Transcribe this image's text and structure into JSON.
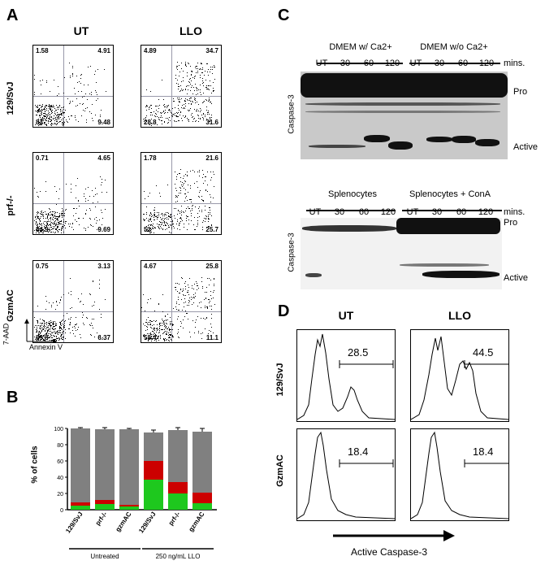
{
  "panel_a": {
    "label": "A",
    "col_headers": [
      "UT",
      "LLO"
    ],
    "row_headers": [
      "129/SvJ",
      "prf-/-",
      "GzmAC"
    ],
    "y_axis": "7-AAD",
    "x_axis": "Annexin V",
    "plots": [
      {
        "row": 0,
        "col": 0,
        "ul": "1.58",
        "ur": "4.91",
        "ll": "84",
        "lr": "9.48"
      },
      {
        "row": 0,
        "col": 1,
        "ul": "4.89",
        "ur": "34.7",
        "ll": "28.8",
        "lr": "31.6"
      },
      {
        "row": 1,
        "col": 0,
        "ul": "0.71",
        "ur": "4.65",
        "ll": "84.9",
        "lr": "9.69"
      },
      {
        "row": 1,
        "col": 1,
        "ul": "1.78",
        "ur": "21.6",
        "ll": "51",
        "lr": "25.7"
      },
      {
        "row": 2,
        "col": 0,
        "ul": "0.75",
        "ur": "3.13",
        "ll": "89.8",
        "lr": "6.37"
      },
      {
        "row": 2,
        "col": 1,
        "ul": "4.67",
        "ur": "25.8",
        "ll": "58.4",
        "lr": "11.1"
      }
    ]
  },
  "panel_b": {
    "label": "B"
  },
  "panel_c": {
    "label": "C",
    "top": {
      "groups": [
        "DMEM w/ Ca2+",
        "DMEM w/o Ca2+"
      ],
      "lanes": [
        "UT",
        "30",
        "60",
        "120",
        "UT",
        "30",
        "60",
        "120"
      ],
      "unit": "mins.",
      "ylabel": "Caspase-3",
      "bands": [
        "Pro",
        "Active"
      ]
    },
    "bottom": {
      "groups": [
        "Splenocytes",
        "Splenocytes + ConA"
      ],
      "lanes": [
        "UT",
        "30",
        "60",
        "120",
        "UT",
        "30",
        "60",
        "120"
      ],
      "unit": "mins.",
      "ylabel": "Caspase-3",
      "bands": [
        "Pro",
        "Active"
      ]
    }
  },
  "panel_d": {
    "label": "D",
    "col_headers": [
      "UT",
      "LLO"
    ],
    "row_headers": [
      "129/SvJ",
      "GzmAC"
    ],
    "values": [
      [
        "28.5",
        "44.5"
      ],
      [
        "18.4",
        "18.4"
      ]
    ],
    "x_axis": "Active Caspase-3"
  },
  "chart_data": {
    "type": "bar",
    "ylabel": "% of cells",
    "ylim": [
      0,
      100
    ],
    "yticks": [
      "0",
      "20",
      "40",
      "60",
      "80",
      "100"
    ],
    "categories": [
      "129/SvJ",
      "prf-/-",
      "gzmAC",
      "129/SvJ",
      "prf-/-",
      "gzmAC"
    ],
    "groups": [
      {
        "name": "Untreated",
        "span": [
          0,
          2
        ]
      },
      {
        "name": "250 ng/mL LLO",
        "span": [
          3,
          5
        ]
      }
    ],
    "series": [
      {
        "color": "#1ec81e",
        "values": [
          5,
          7,
          4,
          37,
          20,
          8
        ]
      },
      {
        "color": "#cc0000",
        "values": [
          4,
          5,
          2,
          23,
          14,
          13
        ]
      },
      {
        "color": "#808080",
        "values": [
          91,
          87,
          93,
          35,
          64,
          75
        ]
      }
    ],
    "errors": [
      1,
      2,
      1,
      3,
      3,
      4
    ]
  }
}
